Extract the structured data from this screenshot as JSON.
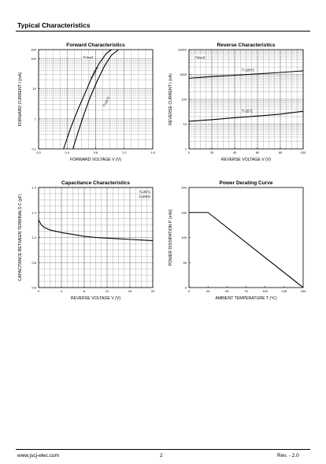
{
  "header": {
    "section_title": "Typical Characteristics"
  },
  "footer": {
    "website": "www.jscj-elec.com",
    "page": "2",
    "revision": "Rev. - 2.0"
  },
  "chart_data": [
    {
      "id": "forward",
      "type": "line",
      "title": "Forward    Characteristics",
      "xlabel": "FORWARD VOLTAGE   V  (V)",
      "ylabel": "FORWARD CURRENT   I  (mA)",
      "xscale": "linear",
      "yscale": "log",
      "xlim": [
        0.0,
        1.6
      ],
      "ylim": [
        0.1,
        200
      ],
      "xticks": [
        0.0,
        0.4,
        0.8,
        1.2,
        1.6
      ],
      "xticklabels": [
        "0.0",
        "0.4",
        "0.8",
        "1.2",
        "1.6"
      ],
      "yticks": [
        0.1,
        1,
        10,
        100,
        200
      ],
      "yticklabels": [
        "0.1",
        "1",
        "10",
        "100",
        "200"
      ],
      "grid": true,
      "legend_note": "Pulsed",
      "series": [
        {
          "name": "T=100°C",
          "x": [
            0.35,
            0.45,
            0.55,
            0.65,
            0.75,
            0.85,
            0.95,
            1.02
          ],
          "y": [
            0.1,
            0.5,
            2,
            7,
            25,
            70,
            150,
            200
          ]
        },
        {
          "name": "T=25°C",
          "x": [
            0.48,
            0.56,
            0.64,
            0.72,
            0.82,
            0.92,
            1.02,
            1.12
          ],
          "y": [
            0.1,
            0.4,
            1.5,
            5,
            18,
            55,
            130,
            200
          ]
        }
      ]
    },
    {
      "id": "reverse",
      "type": "line",
      "title": "Reverse    Characteristics",
      "xlabel": "REVERSE VOLTAGE   V  (V)",
      "ylabel": "REVERSE CURRENT   I  (nA)",
      "xscale": "linear",
      "yscale": "log",
      "xlim": [
        0,
        100
      ],
      "ylim": [
        1,
        10000
      ],
      "xticks": [
        0,
        20,
        40,
        60,
        80,
        100
      ],
      "xticklabels": [
        "0",
        "20",
        "40",
        "60",
        "80",
        "100"
      ],
      "yticks": [
        1,
        10,
        100,
        1000,
        10000
      ],
      "yticklabels": [
        "1",
        "10",
        "100",
        "1000",
        "10000"
      ],
      "grid": true,
      "legend_note": "Pulsed",
      "series": [
        {
          "name": "T=100°C",
          "x": [
            0,
            20,
            40,
            60,
            80,
            100
          ],
          "y": [
            700,
            820,
            930,
            1050,
            1200,
            1400
          ]
        },
        {
          "name": "T=25°C",
          "x": [
            0,
            20,
            40,
            60,
            80,
            100
          ],
          "y": [
            13,
            15,
            18,
            21,
            25,
            33
          ]
        }
      ]
    },
    {
      "id": "capacitance",
      "type": "line",
      "title": "Capacitance Characteristics",
      "xlabel": "REVERSE VOLTAGE   V  (V)",
      "ylabel": "CAPACITANCE BETWEEN TERMINALS   C  (pF)",
      "xscale": "linear",
      "yscale": "linear",
      "xlim": [
        0,
        20
      ],
      "ylim": [
        0.6,
        1.4
      ],
      "xticks": [
        0,
        4,
        8,
        12,
        16,
        20
      ],
      "xticklabels": [
        "0",
        "4",
        "8",
        "12",
        "16",
        "20"
      ],
      "yticks": [
        0.6,
        0.8,
        1.0,
        1.2,
        1.4
      ],
      "yticklabels": [
        "0.6",
        "0.8",
        "1.0",
        "1.2",
        "1.4"
      ],
      "grid": true,
      "annotations": [
        "T=25°C",
        "f=1MHz"
      ],
      "series": [
        {
          "name": "",
          "x": [
            0,
            0.5,
            1,
            2,
            3,
            4,
            6,
            8,
            10,
            12,
            14,
            16,
            18,
            20
          ],
          "y": [
            1.14,
            1.1,
            1.08,
            1.06,
            1.05,
            1.04,
            1.025,
            1.01,
            1.0,
            0.995,
            0.99,
            0.985,
            0.98,
            0.975
          ]
        }
      ]
    },
    {
      "id": "derating",
      "type": "line",
      "title": "Power Derating Curve",
      "xlabel": "AMBIENT TEMPERATURE   T  (℃)",
      "ylabel": "POWER DISSIPATION   P  (mW)",
      "xscale": "linear",
      "yscale": "linear",
      "xlim": [
        0,
        150
      ],
      "ylim": [
        0,
        200
      ],
      "xticks": [
        0,
        25,
        50,
        75,
        100,
        125,
        150
      ],
      "xticklabels": [
        "0",
        "25",
        "50",
        "75",
        "100",
        "125",
        "150"
      ],
      "yticks": [
        0,
        50,
        100,
        150,
        200
      ],
      "yticklabels": [
        "0",
        "50",
        "100",
        "150",
        "200"
      ],
      "grid": false,
      "series": [
        {
          "name": "",
          "x": [
            0,
            25,
            150
          ],
          "y": [
            150,
            150,
            0
          ]
        }
      ]
    }
  ]
}
